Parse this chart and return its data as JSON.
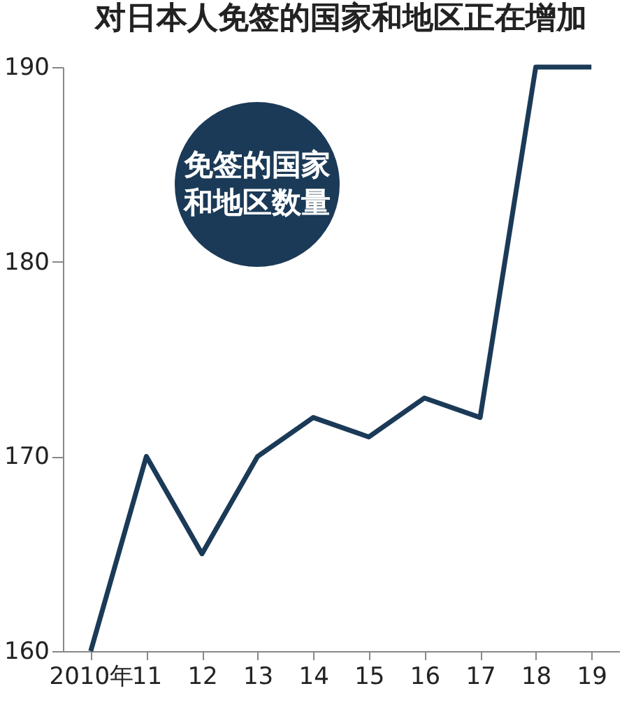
{
  "chart_data": {
    "type": "line",
    "title": "对日本人免签的国家和地区正在增加",
    "categories": [
      "2010年",
      "11",
      "12",
      "13",
      "14",
      "15",
      "16",
      "17",
      "18",
      "19"
    ],
    "series": [
      {
        "color": "#1b3a57",
        "values": [
          160,
          170,
          165,
          170,
          172,
          171,
          173,
          172,
          190,
          190
        ]
      }
    ],
    "ylim": [
      160,
      190
    ],
    "yticks": [
      160,
      170,
      180,
      190
    ],
    "grid": false,
    "legend": false,
    "marker": "none",
    "line_style": "solid",
    "annotations": [
      "免签的国家和地区数量"
    ]
  }
}
